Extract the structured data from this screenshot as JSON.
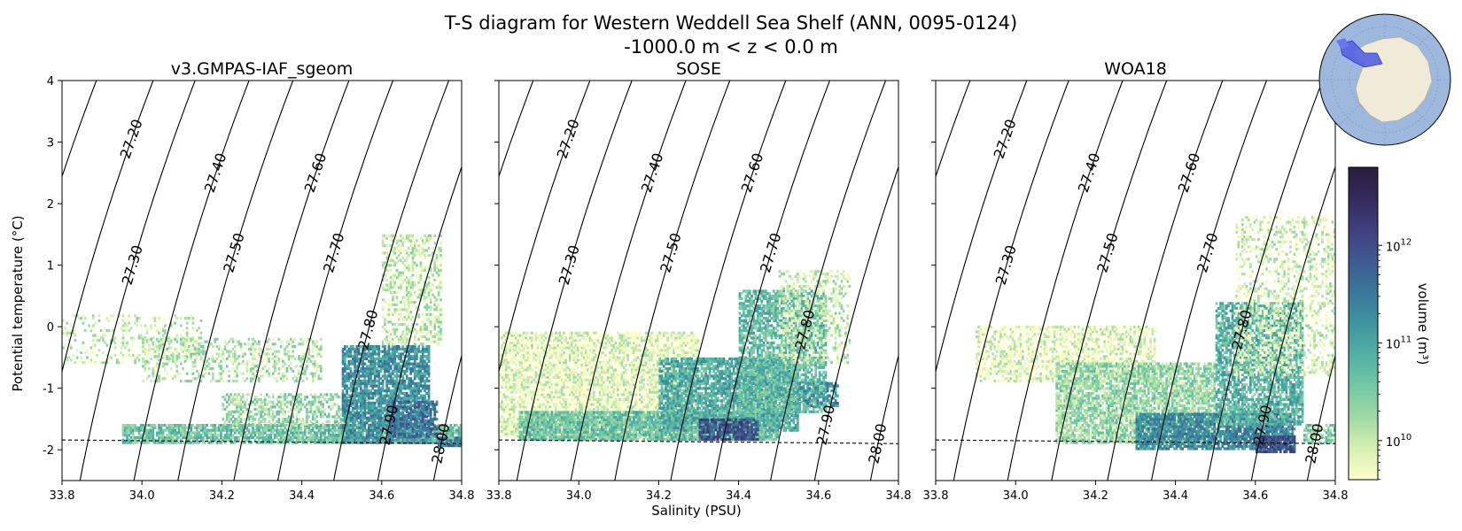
{
  "figure": {
    "title": "T-S diagram for Western Weddell Sea Shelf (ANN, 0095-0124)",
    "subtitle": "-1000.0 m < z < 0.0 m",
    "xlabel": "Salinity (PSU)",
    "ylabel": "Potential temperature (°C)",
    "inset_map": "antarctica-polar-map-western-weddell-highlighted"
  },
  "chart_data": [
    {
      "type": "heatmap",
      "title": "v3.GMPAS-IAF_sgeom",
      "xlim": [
        33.8,
        34.8
      ],
      "ylim": [
        -2.5,
        4
      ],
      "xticks": [
        "33.8",
        "34.0",
        "34.2",
        "34.4",
        "34.6",
        "34.8"
      ],
      "yticks": [
        "-2",
        "-1",
        "0",
        "1",
        "2",
        "3",
        "4"
      ],
      "freezing_line": {
        "S": [
          33.8,
          34.8
        ],
        "T": [
          -1.84,
          -1.9
        ]
      },
      "density_contours": [
        "27.00",
        "27.10",
        "27.20",
        "27.30",
        "27.40",
        "27.50",
        "27.60",
        "27.70",
        "27.80",
        "27.90",
        "28.00"
      ],
      "volume_clusters": [
        {
          "S": [
            33.8,
            34.15
          ],
          "T": [
            -0.6,
            0.2
          ],
          "logV": 10.0,
          "density": 0.25
        },
        {
          "S": [
            34.0,
            34.45
          ],
          "T": [
            -0.9,
            -0.2
          ],
          "logV": 10.1,
          "density": 0.35
        },
        {
          "S": [
            33.95,
            34.8
          ],
          "T": [
            -1.9,
            -1.6
          ],
          "logV": 10.6,
          "density": 0.8
        },
        {
          "S": [
            34.2,
            34.6
          ],
          "T": [
            -1.6,
            -1.1
          ],
          "logV": 10.3,
          "density": 0.5
        },
        {
          "S": [
            34.5,
            34.72
          ],
          "T": [
            -1.9,
            -0.3
          ],
          "logV": 11.2,
          "density": 0.8
        },
        {
          "S": [
            34.6,
            34.75
          ],
          "T": [
            -0.3,
            1.5
          ],
          "logV": 10.0,
          "density": 0.5
        },
        {
          "S": [
            34.62,
            34.74
          ],
          "T": [
            -1.8,
            -1.2
          ],
          "logV": 11.6,
          "density": 0.6
        },
        {
          "S": [
            34.74,
            34.8
          ],
          "T": [
            -1.95,
            -1.8
          ],
          "logV": 11.5,
          "density": 0.8
        }
      ]
    },
    {
      "type": "heatmap",
      "title": "SOSE",
      "xlim": [
        33.8,
        34.8
      ],
      "ylim": [
        -2.5,
        4
      ],
      "xticks": [
        "33.8",
        "34.0",
        "34.2",
        "34.4",
        "34.6",
        "34.8"
      ],
      "yticks": [
        "-2",
        "-1",
        "0",
        "1",
        "2",
        "3",
        "4"
      ],
      "freezing_line": {
        "S": [
          33.8,
          34.8
        ],
        "T": [
          -1.84,
          -1.9
        ]
      },
      "density_contours": [
        "27.00",
        "27.10",
        "27.20",
        "27.30",
        "27.40",
        "27.50",
        "27.60",
        "27.70",
        "27.80",
        "27.90",
        "28.00"
      ],
      "volume_clusters": [
        {
          "S": [
            33.8,
            34.3
          ],
          "T": [
            -1.8,
            -0.1
          ],
          "logV": 9.8,
          "density": 0.75
        },
        {
          "S": [
            33.85,
            34.5
          ],
          "T": [
            -1.85,
            -1.4
          ],
          "logV": 10.6,
          "density": 0.9
        },
        {
          "S": [
            34.2,
            34.55
          ],
          "T": [
            -1.7,
            -0.5
          ],
          "logV": 10.9,
          "density": 0.8
        },
        {
          "S": [
            34.4,
            34.62
          ],
          "T": [
            -1.4,
            0.6
          ],
          "logV": 10.7,
          "density": 0.7
        },
        {
          "S": [
            34.5,
            34.68
          ],
          "T": [
            -0.6,
            0.9
          ],
          "logV": 10.0,
          "density": 0.4
        },
        {
          "S": [
            34.3,
            34.45
          ],
          "T": [
            -1.85,
            -1.5
          ],
          "logV": 11.9,
          "density": 0.8
        },
        {
          "S": [
            34.55,
            34.65
          ],
          "T": [
            -1.3,
            -0.9
          ],
          "logV": 11.2,
          "density": 0.5
        }
      ]
    },
    {
      "type": "heatmap",
      "title": "WOA18",
      "xlim": [
        33.8,
        34.8
      ],
      "ylim": [
        -2.5,
        4
      ],
      "xticks": [
        "33.8",
        "34.0",
        "34.2",
        "34.4",
        "34.6",
        "34.8"
      ],
      "yticks": [
        "-2",
        "-1",
        "0",
        "1",
        "2",
        "3",
        "4"
      ],
      "freezing_line": {
        "S": [
          33.8,
          34.8
        ],
        "T": [
          -1.84,
          -1.9
        ]
      },
      "density_contours": [
        "27.00",
        "27.10",
        "27.20",
        "27.30",
        "27.40",
        "27.50",
        "27.60",
        "27.70",
        "27.80",
        "27.90",
        "28.00"
      ],
      "volume_clusters": [
        {
          "S": [
            33.9,
            34.35
          ],
          "T": [
            -0.9,
            0.0
          ],
          "logV": 9.8,
          "density": 0.6
        },
        {
          "S": [
            34.1,
            34.5
          ],
          "T": [
            -1.9,
            -0.6
          ],
          "logV": 10.3,
          "density": 0.75
        },
        {
          "S": [
            34.3,
            34.7
          ],
          "T": [
            -2.0,
            -1.4
          ],
          "logV": 11.3,
          "density": 0.85
        },
        {
          "S": [
            34.5,
            34.72
          ],
          "T": [
            -1.6,
            0.4
          ],
          "logV": 10.8,
          "density": 0.7
        },
        {
          "S": [
            34.55,
            34.8
          ],
          "T": [
            -0.8,
            1.8
          ],
          "logV": 9.9,
          "density": 0.35
        },
        {
          "S": [
            34.6,
            34.7
          ],
          "T": [
            -2.05,
            -1.8
          ],
          "logV": 12.0,
          "density": 0.8
        },
        {
          "S": [
            34.72,
            34.8
          ],
          "T": [
            -1.9,
            -1.6
          ],
          "logV": 10.5,
          "density": 0.6
        }
      ]
    }
  ],
  "colorbar": {
    "label": "volume (m³)",
    "scale": "log",
    "range": [
      9.6,
      12.8
    ],
    "ticks": [
      {
        "value": 10,
        "base": "10",
        "exp": "10"
      },
      {
        "value": 11,
        "base": "10",
        "exp": "11"
      },
      {
        "value": 12,
        "base": "10",
        "exp": "12"
      }
    ],
    "colors": [
      "#ffffcc",
      "#d6efb3",
      "#a0d9a5",
      "#73c8a4",
      "#52b0a4",
      "#3f94a0",
      "#3b779a",
      "#405a92",
      "#40407e",
      "#342a5c",
      "#2b1d3e"
    ]
  }
}
